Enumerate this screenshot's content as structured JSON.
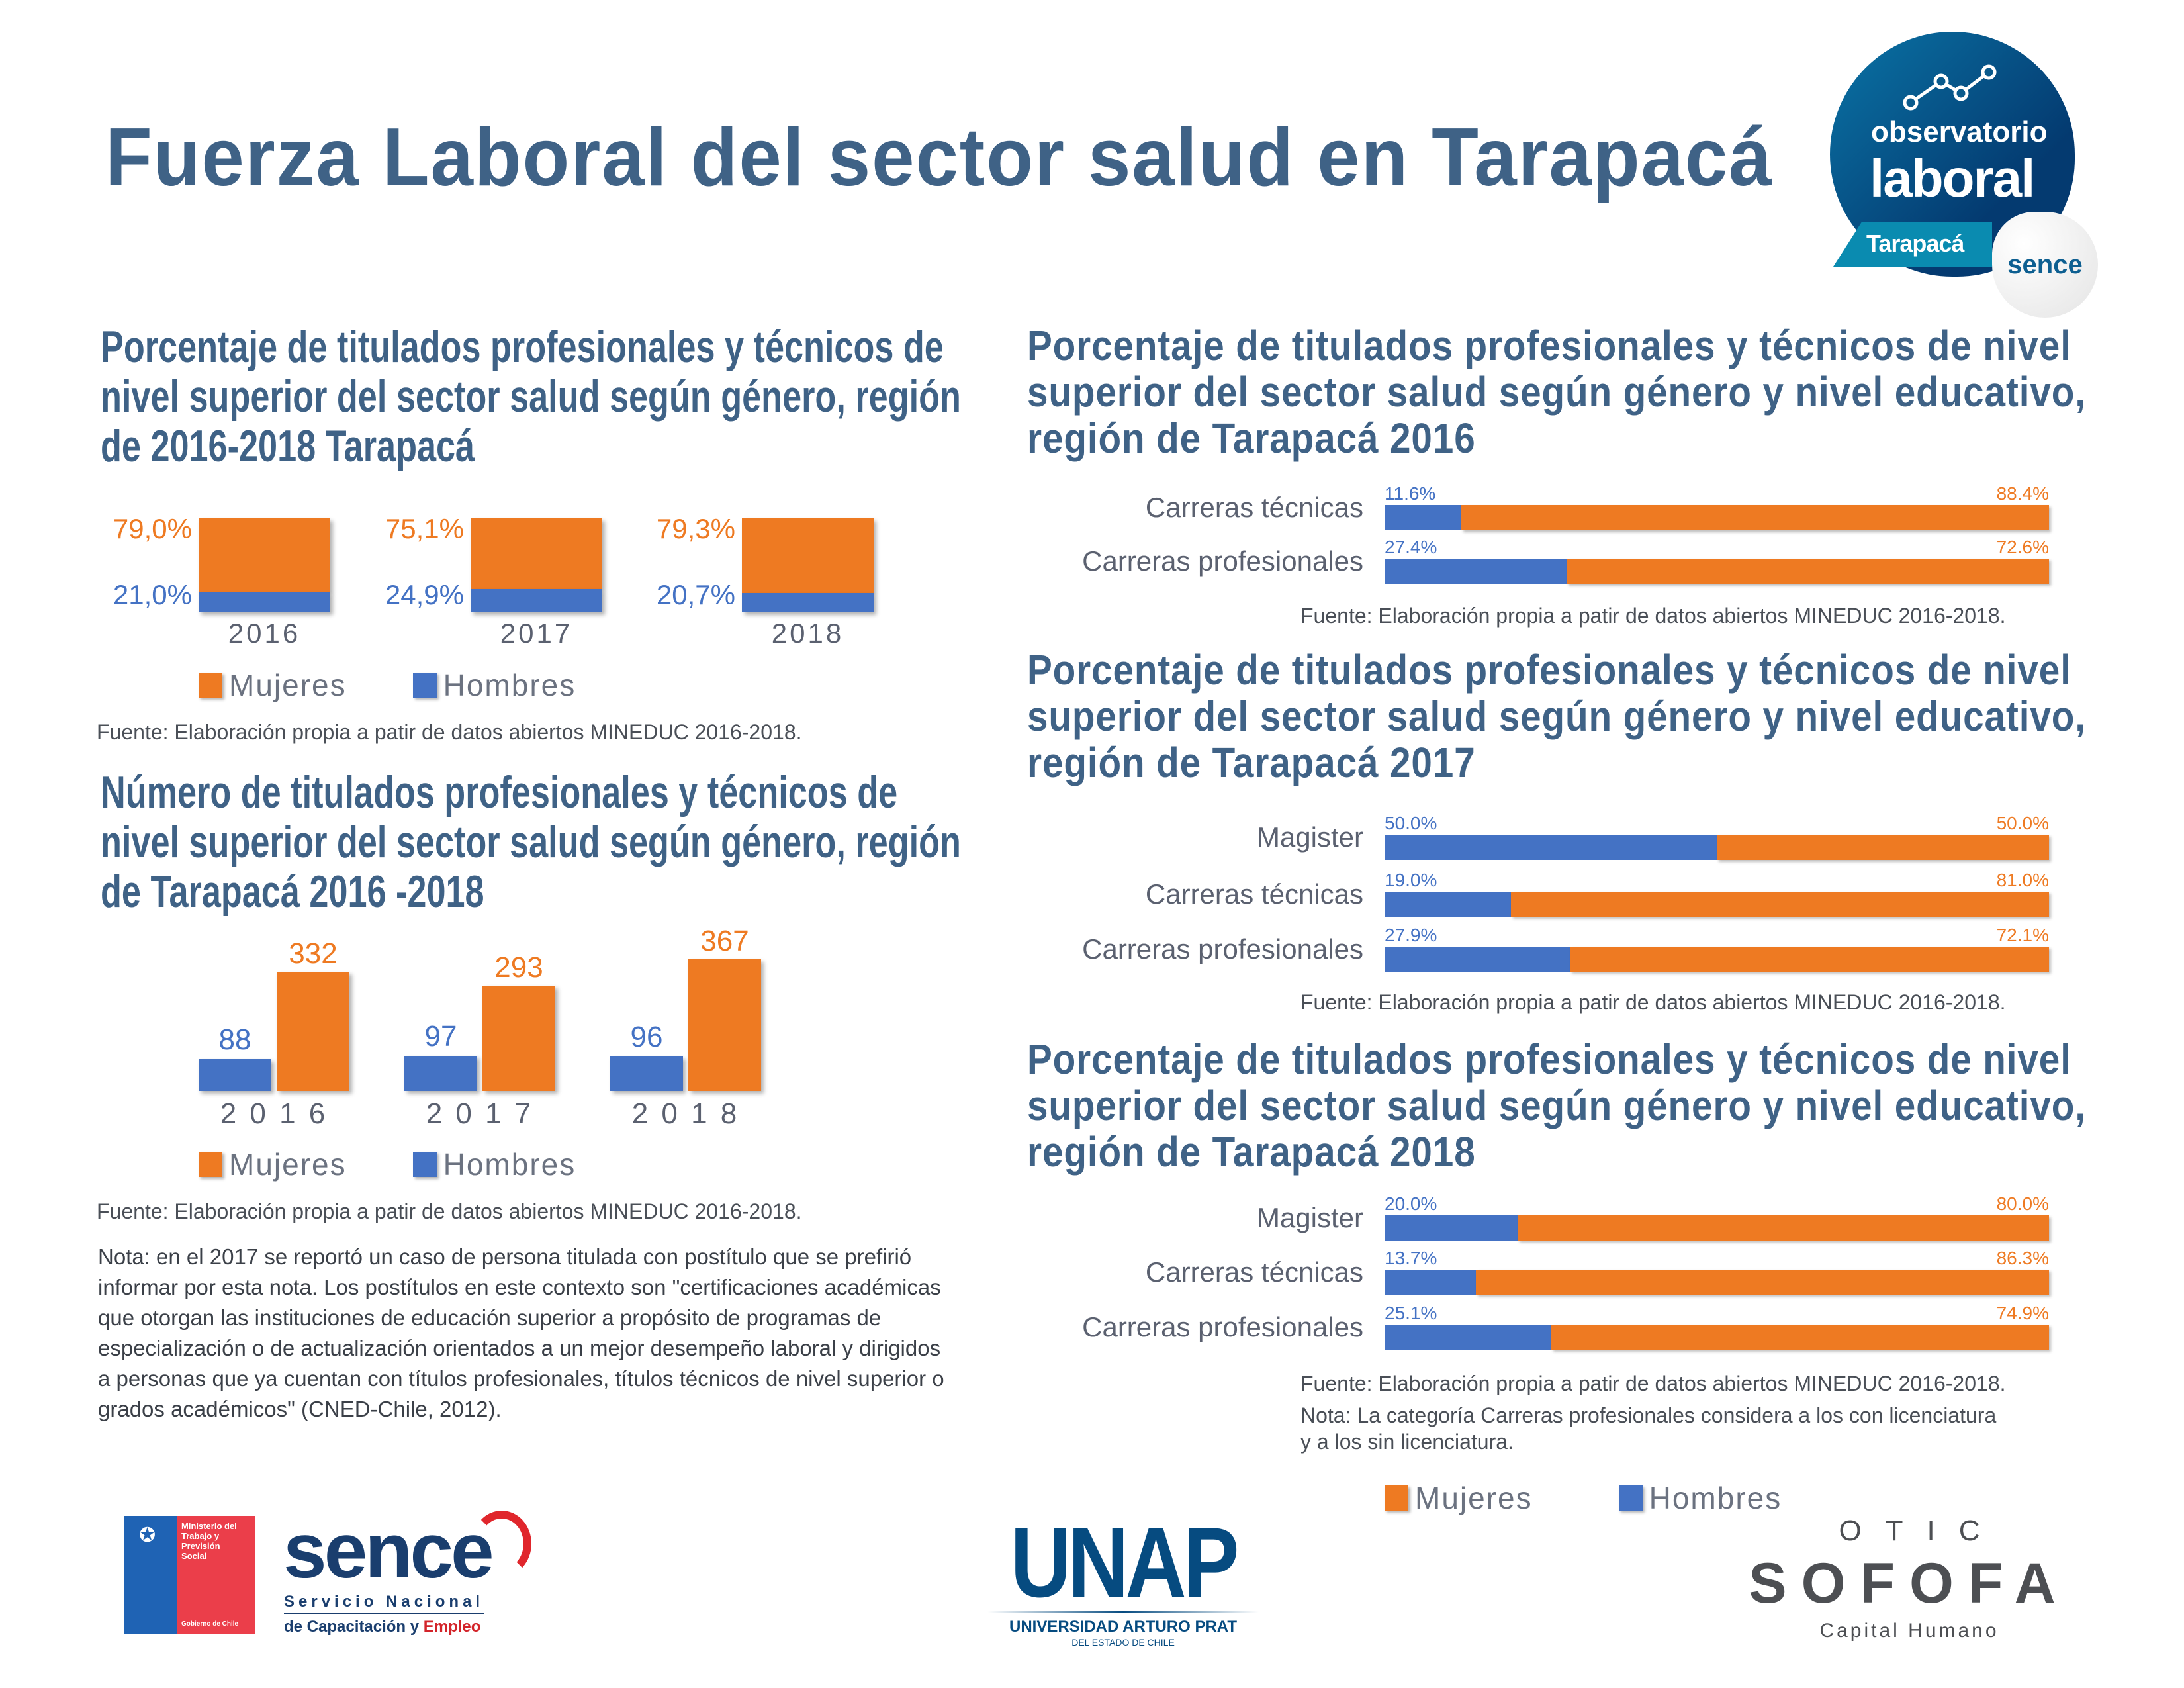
{
  "title": "Fuerza Laboral del sector salud en Tarapacá",
  "colors": {
    "mujeres": "#ee7a22",
    "hombres": "#4472c4",
    "title": "#3f6286"
  },
  "legend": {
    "mujeres": "Mujeres",
    "hombres": "Hombres"
  },
  "left": {
    "chart1_title_lines": [
      "Porcentaje de titulados profesionales  y técnicos de",
      "nivel superior del sector salud según género, región",
      "de 2016-2018 Tarapacá"
    ],
    "chart1_source": "Fuente: Elaboración propia a patir de datos abiertos MINEDUC 2016-2018.",
    "chart2_title_lines": [
      "Número de titulados profesionales y técnicos de",
      "nivel superior del sector salud según género, región",
      "de Tarapacá 2016 -2018"
    ],
    "chart2_source": "Fuente: Elaboración propia a patir de datos abiertos MINEDUC 2016-2018.",
    "note": "Nota: en el 2017 se reportó un caso de persona titulada con postítulo que se prefirió informar por esta nota. Los  postítulos en este contexto son \"certificaciones académicas que otorgan las instituciones de educación superior a propósito de programas de especialización o de actualización orientados a un mejor desempeño laboral y dirigidos a personas que ya cuentan con títulos profesionales, títulos técnicos de nivel superior o grados académicos\" (CNED-Chile, 2012)."
  },
  "right": {
    "source": "Fuente: Elaboración propia a patir de datos abiertos MINEDUC 2016-2018.",
    "note_lines": [
      "Nota: La categoría Carreras profesionales considera a los con licenciatura",
      "y a los sin licenciatura."
    ]
  },
  "chart_data": [
    {
      "type": "bar",
      "stacked": "percent",
      "categories": [
        "2016",
        "2017",
        "2018"
      ],
      "series": [
        {
          "name": "Mujeres",
          "values": [
            79.0,
            75.1,
            79.3
          ],
          "labels": [
            "79,0%",
            "75,1%",
            "79,3%"
          ]
        },
        {
          "name": "Hombres",
          "values": [
            21.0,
            24.9,
            20.7
          ],
          "labels": [
            "21,0%",
            "24,9%",
            "20,7%"
          ]
        }
      ],
      "legend": "bottom"
    },
    {
      "type": "bar",
      "categories": [
        "2 0 1 6",
        "2 0 1 7",
        "2 0 1 8"
      ],
      "series": [
        {
          "name": "Hombres",
          "values": [
            88,
            97,
            96
          ]
        },
        {
          "name": "Mujeres",
          "values": [
            332,
            293,
            367
          ]
        }
      ],
      "legend": "bottom"
    },
    {
      "type": "bar",
      "orientation": "horizontal",
      "stacked": "percent",
      "title_lines": [
        "Porcentaje de titulados profesionales y técnicos de nivel",
        "superior del sector salud según género y nivel educativo,",
        "región de Tarapacá 2016"
      ],
      "categories": [
        "Carreras técnicas",
        "Carreras profesionales"
      ],
      "series": [
        {
          "name": "Hombres",
          "values": [
            11.6,
            27.4
          ],
          "labels": [
            "11.6%",
            "27.4%"
          ]
        },
        {
          "name": "Mujeres",
          "values": [
            88.4,
            72.6
          ],
          "labels": [
            "88.4%",
            "72.6%"
          ]
        }
      ]
    },
    {
      "type": "bar",
      "orientation": "horizontal",
      "stacked": "percent",
      "title_lines": [
        "Porcentaje de titulados profesionales y técnicos de nivel",
        "superior del sector salud según género y nivel educativo,",
        "región de Tarapacá 2017"
      ],
      "categories": [
        "Magister",
        "Carreras técnicas",
        "Carreras profesionales"
      ],
      "series": [
        {
          "name": "Hombres",
          "values": [
            50.0,
            19.0,
            27.9
          ],
          "labels": [
            "50.0%",
            "19.0%",
            "27.9%"
          ]
        },
        {
          "name": "Mujeres",
          "values": [
            50.0,
            81.0,
            72.1
          ],
          "labels": [
            "50.0%",
            "81.0%",
            "72.1%"
          ]
        }
      ]
    },
    {
      "type": "bar",
      "orientation": "horizontal",
      "stacked": "percent",
      "title_lines": [
        "Porcentaje de titulados profesionales y técnicos de nivel",
        "superior del sector salud según género y nivel educativo,",
        "región de Tarapacá 2018"
      ],
      "categories": [
        "Magister",
        "Carreras técnicas",
        "Carreras profesionales"
      ],
      "series": [
        {
          "name": "Hombres",
          "values": [
            20.0,
            13.7,
            25.1
          ],
          "labels": [
            "20.0%",
            "13.7%",
            "25.1%"
          ]
        },
        {
          "name": "Mujeres",
          "values": [
            80.0,
            86.3,
            74.9
          ],
          "labels": [
            "80.0%",
            "86.3%",
            "74.9%"
          ]
        }
      ],
      "legend": "bottom"
    }
  ],
  "logos": {
    "observatorio": {
      "line1": "observatorio",
      "line2": "laboral",
      "region": "Tarapacá",
      "badge": "sence"
    },
    "ministerio": {
      "lines": [
        "Ministerio del",
        "Trabajo y",
        "Previsión",
        "Social"
      ],
      "footer": "Gobierno de Chile"
    },
    "sence": {
      "word": "sence",
      "line1": "Servicio Nacional",
      "line2a": "de Capacitación y ",
      "line2b": "Empleo"
    },
    "unap": {
      "word": "UNAP",
      "line1": "UNIVERSIDAD ARTURO PRAT",
      "line2": "DEL ESTADO DE CHILE"
    },
    "sofofa": {
      "top": "OTIC",
      "word": "SOFOFA",
      "bottom": "Capital Humano"
    }
  }
}
